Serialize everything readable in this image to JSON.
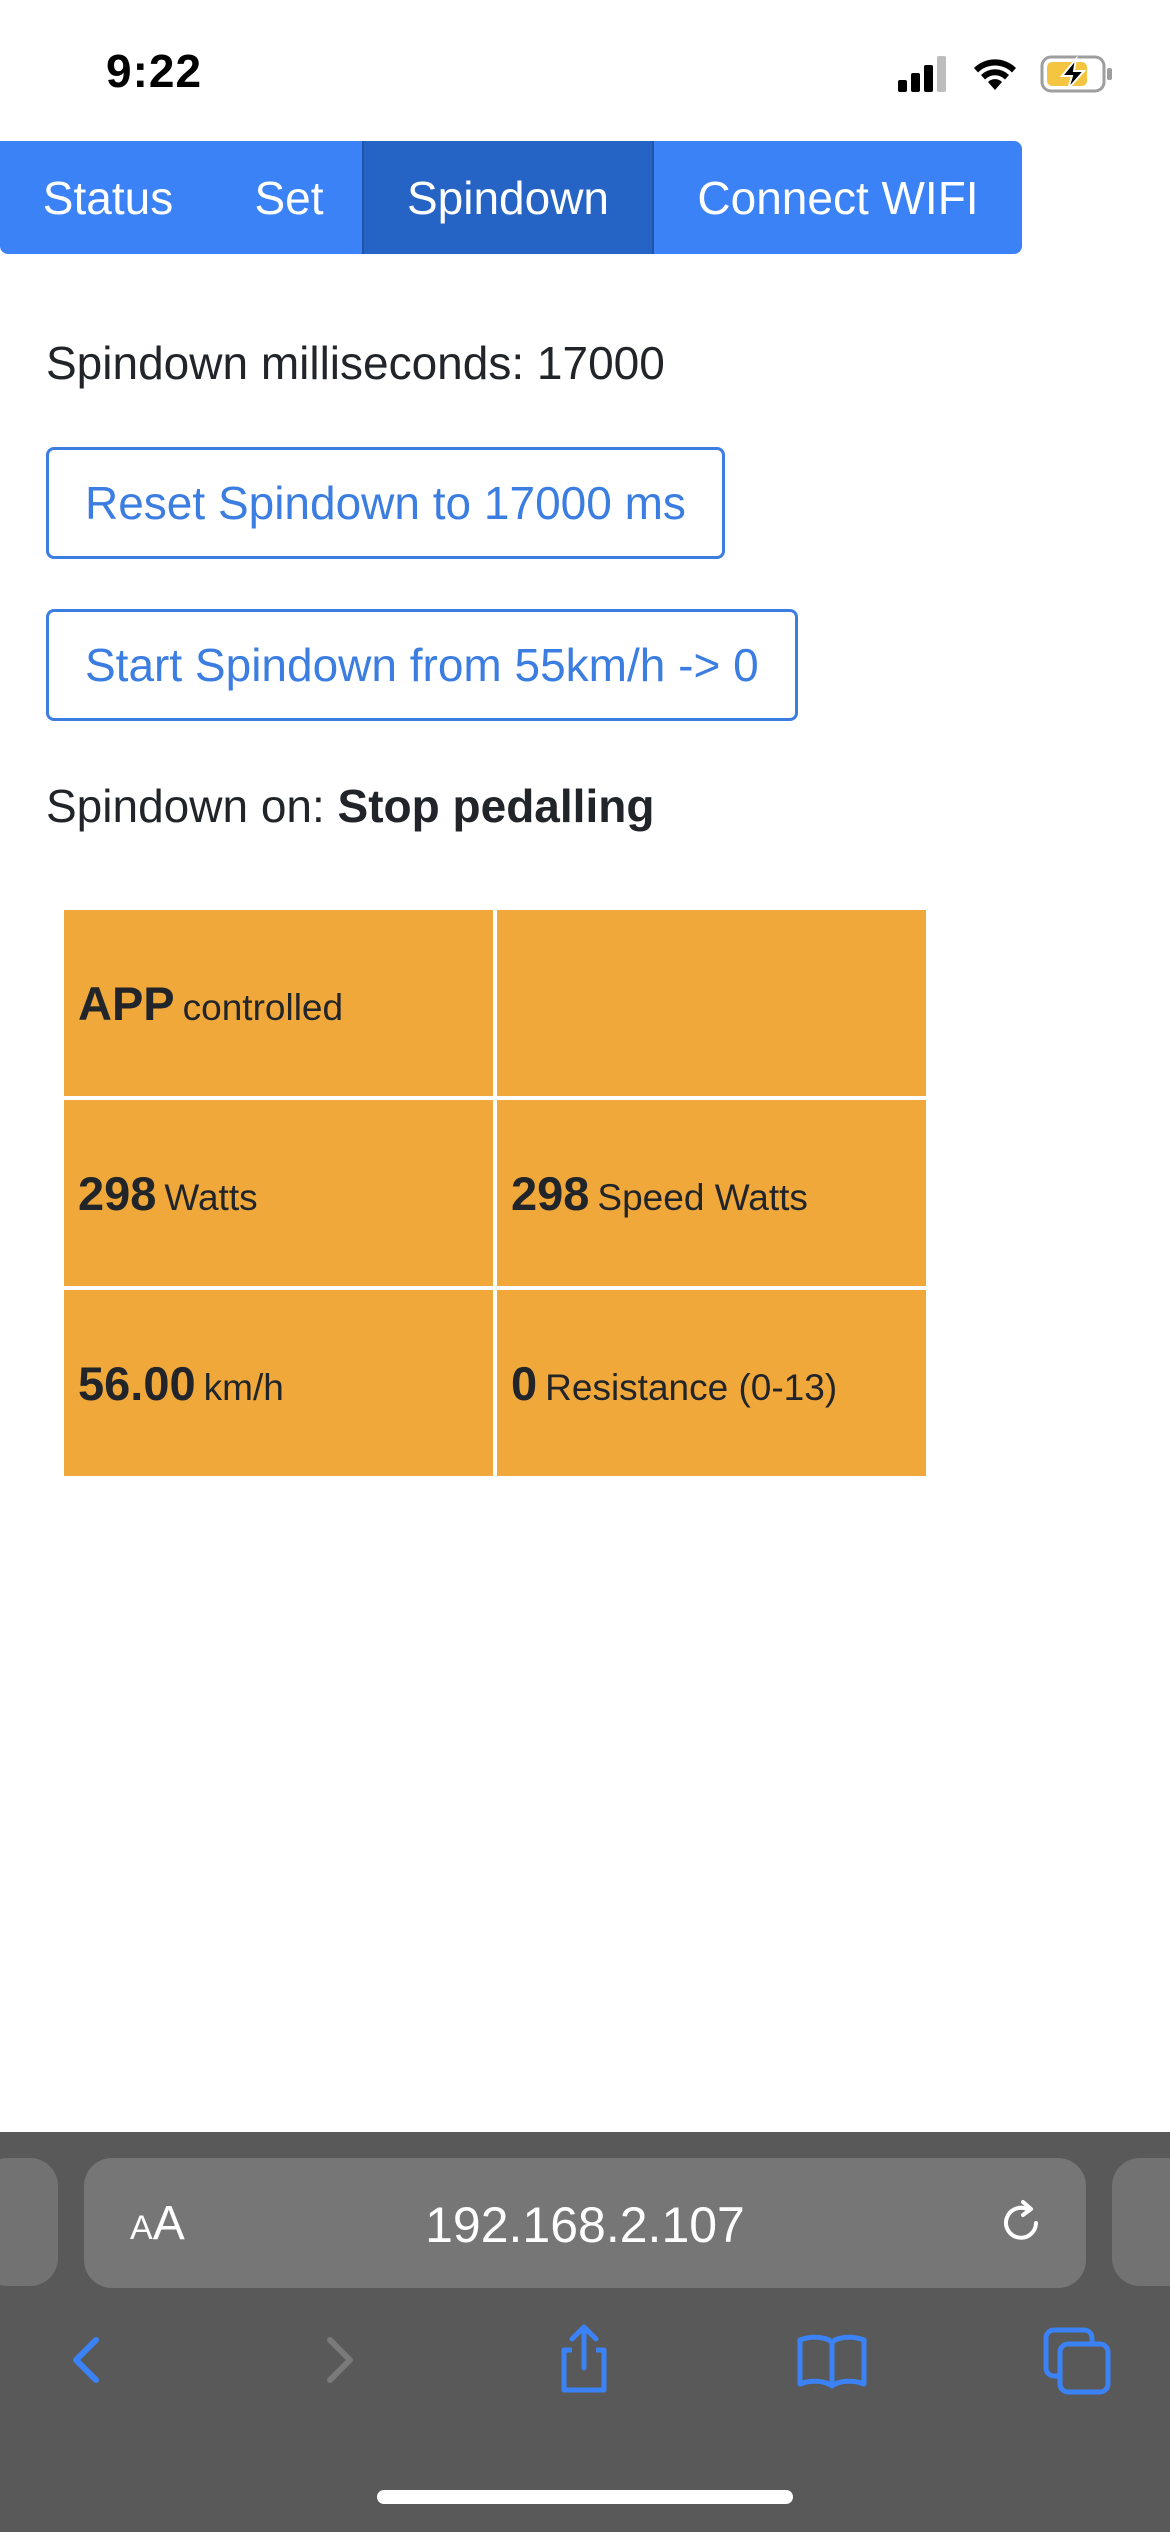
{
  "status_bar": {
    "time": "9:22",
    "signal_icon": "cellular-signal-icon",
    "wifi_icon": "wifi-icon",
    "battery_icon": "battery-charging-icon",
    "battery_color": "#f5c542"
  },
  "nav": {
    "tabs": [
      {
        "label": "Status",
        "active": false
      },
      {
        "label": "Set",
        "active": false
      },
      {
        "label": "Spindown",
        "active": true
      },
      {
        "label": "Connect WIFI",
        "active": false
      }
    ],
    "accent": "#3b82f6",
    "active_color": "#2563c5"
  },
  "spindown": {
    "ms_label": "Spindown milliseconds: ",
    "ms_value": "17000",
    "reset_button": "Reset Spindown to 17000 ms",
    "start_button": "Start Spindown from 55km/h -> 0",
    "on_label": "Spindown on: ",
    "on_value": "Stop pedalling",
    "button_color": "#3b7de0"
  },
  "metrics": {
    "cell_color": "#f0a83a",
    "rows": [
      [
        {
          "value": "APP",
          "unit": "controlled"
        },
        {
          "value": "",
          "unit": ""
        }
      ],
      [
        {
          "value": "298",
          "unit": "Watts"
        },
        {
          "value": "298",
          "unit": "Speed Watts"
        }
      ],
      [
        {
          "value": "56.00",
          "unit": "km/h"
        },
        {
          "value": "0",
          "unit": "Resistance (0-13)"
        }
      ]
    ]
  },
  "browser": {
    "aa_big": "A",
    "aa_small": "A",
    "url": "192.168.2.107",
    "reload_icon": "reload-icon",
    "toolbar_icons": [
      "back-icon",
      "forward-icon",
      "share-icon",
      "bookmarks-icon",
      "tabs-icon"
    ]
  }
}
